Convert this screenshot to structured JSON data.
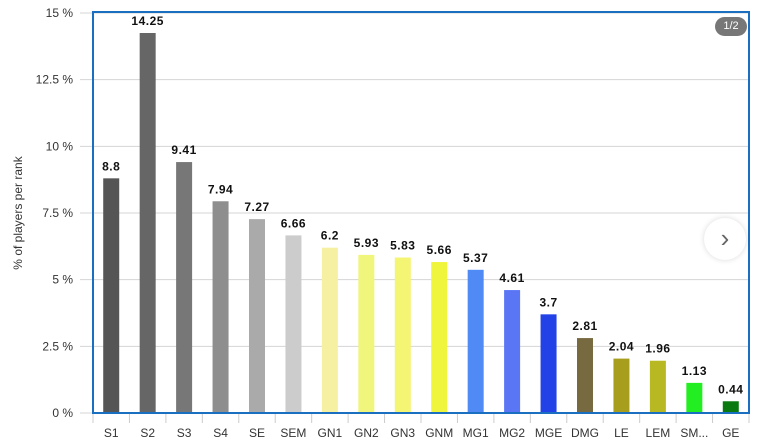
{
  "chart_data": {
    "type": "bar",
    "title": "",
    "xlabel": "",
    "ylabel": "% of players per rank",
    "ylim": [
      0,
      15
    ],
    "yticks": [
      0,
      2.5,
      5,
      7.5,
      10,
      12.5,
      15
    ],
    "ytick_labels": [
      "0 %",
      "2.5 %",
      "5 %",
      "7.5 %",
      "10 %",
      "12.5 %",
      "15 %"
    ],
    "grid": true,
    "categories": [
      "S1",
      "S2",
      "S3",
      "S4",
      "SE",
      "SEM",
      "GN1",
      "GN2",
      "GN3",
      "GNM",
      "MG1",
      "MG2",
      "MGE",
      "DMG",
      "LE",
      "LEM",
      "SM...",
      "GE"
    ],
    "values": [
      8.8,
      14.25,
      9.41,
      7.94,
      7.27,
      6.66,
      6.2,
      5.93,
      5.83,
      5.66,
      5.37,
      4.61,
      3.7,
      2.81,
      2.04,
      1.96,
      1.13,
      0.44
    ],
    "value_labels": [
      "8.8",
      "14.25",
      "9.41",
      "7.94",
      "7.27",
      "6.66",
      "6.2",
      "5.93",
      "5.83",
      "5.66",
      "5.37",
      "4.61",
      "3.7",
      "2.81",
      "2.04",
      "1.96",
      "1.13",
      "0.44"
    ],
    "colors": [
      "#555555",
      "#666666",
      "#777777",
      "#8e8e8e",
      "#aaaaaa",
      "#cccccc",
      "#f6f1a2",
      "#f0f57c",
      "#f4f572",
      "#eef53c",
      "#4f8af5",
      "#5a76f5",
      "#2242e8",
      "#786a40",
      "#a89e1e",
      "#b8b822",
      "#22ee22",
      "#0a7a10"
    ]
  },
  "pager": {
    "label": "1/2"
  },
  "next_button": {
    "glyph": "›"
  },
  "frame_color": "#1a6fc0"
}
